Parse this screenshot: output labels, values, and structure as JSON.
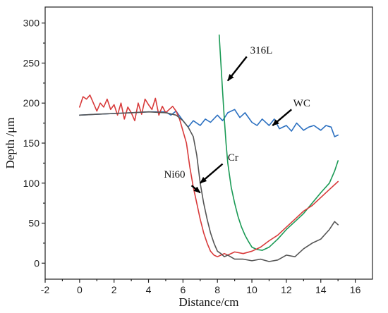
{
  "chart_data": {
    "type": "line",
    "xlabel": "Distance/cm",
    "ylabel": "Depth /μm",
    "xlim": [
      -2,
      17
    ],
    "ylim": [
      -20,
      320
    ],
    "xticks": [
      -2,
      0,
      2,
      4,
      6,
      8,
      10,
      12,
      14,
      16
    ],
    "yticks": [
      0,
      50,
      100,
      150,
      200,
      250,
      300
    ],
    "grid": false,
    "series": [
      {
        "name": "WC",
        "color": "#2a6fc0",
        "x": [
          0,
          1,
          2,
          3,
          4,
          5,
          5.3,
          5.6,
          6,
          6.3,
          6.6,
          7,
          7.3,
          7.6,
          8,
          8.3,
          8.6,
          9,
          9.3,
          9.6,
          10,
          10.3,
          10.6,
          11,
          11.3,
          11.6,
          12,
          12.3,
          12.6,
          13,
          13.3,
          13.6,
          14,
          14.3,
          14.6,
          14.8,
          15
        ],
        "y": [
          185,
          186,
          187,
          188,
          189,
          189,
          185,
          190,
          178,
          170,
          178,
          172,
          180,
          176,
          185,
          178,
          188,
          192,
          182,
          188,
          176,
          172,
          180,
          172,
          180,
          168,
          172,
          165,
          175,
          166,
          170,
          172,
          166,
          172,
          170,
          158,
          160
        ]
      },
      {
        "name": "316L",
        "color": "#1a9a55",
        "x": [
          8.1,
          8.2,
          8.3,
          8.4,
          8.5,
          8.6,
          8.8,
          9,
          9.2,
          9.4,
          9.6,
          9.8,
          10,
          10.3,
          10.6,
          11,
          11.5,
          12,
          12.5,
          13,
          13.5,
          14,
          14.5,
          14.8,
          15
        ],
        "y": [
          285,
          250,
          215,
          180,
          150,
          125,
          95,
          75,
          58,
          45,
          35,
          27,
          20,
          17,
          16,
          20,
          30,
          42,
          52,
          62,
          75,
          88,
          100,
          115,
          128
        ]
      },
      {
        "name": "Ni60",
        "color": "#d83a3a",
        "x": [
          0,
          0.2,
          0.4,
          0.6,
          0.8,
          1,
          1.2,
          1.4,
          1.6,
          1.8,
          2,
          2.2,
          2.4,
          2.6,
          2.8,
          3,
          3.2,
          3.4,
          3.6,
          3.8,
          4,
          4.2,
          4.4,
          4.6,
          4.8,
          5,
          5.2,
          5.4,
          5.6,
          5.8,
          6,
          6.2,
          6.4,
          6.6,
          6.8,
          7,
          7.2,
          7.4,
          7.6,
          7.8,
          8,
          8.2,
          8.4,
          8.6,
          9,
          9.5,
          10,
          10.5,
          11,
          11.5,
          12,
          12.5,
          13,
          13.5,
          14,
          14.5,
          15
        ],
        "y": [
          195,
          208,
          205,
          210,
          200,
          190,
          200,
          195,
          205,
          192,
          198,
          185,
          200,
          180,
          195,
          188,
          178,
          200,
          186,
          205,
          198,
          192,
          206,
          185,
          196,
          188,
          192,
          196,
          190,
          180,
          165,
          150,
          120,
          95,
          75,
          55,
          38,
          25,
          15,
          10,
          8,
          10,
          12,
          10,
          14,
          12,
          15,
          20,
          28,
          35,
          45,
          55,
          65,
          72,
          82,
          92,
          102
        ]
      },
      {
        "name": "Cr",
        "color": "#555555",
        "x": [
          0,
          1,
          2,
          3,
          4,
          5,
          5.6,
          6,
          6.3,
          6.6,
          6.8,
          7,
          7.2,
          7.4,
          7.6,
          7.8,
          8,
          8.2,
          8.4,
          8.6,
          9,
          9.5,
          10,
          10.5,
          11,
          11.5,
          12,
          12.5,
          13,
          13.5,
          14,
          14.5,
          14.8,
          15
        ],
        "y": [
          185,
          186,
          187,
          188,
          189,
          188,
          185,
          178,
          170,
          158,
          135,
          100,
          75,
          55,
          38,
          25,
          15,
          12,
          8,
          10,
          5,
          5,
          3,
          5,
          2,
          4,
          10,
          8,
          18,
          25,
          30,
          42,
          52,
          48
        ]
      }
    ],
    "annotations": [
      {
        "text": "316L",
        "series": "316L"
      },
      {
        "text": "WC",
        "series": "WC"
      },
      {
        "text": "Cr",
        "series": "Cr"
      },
      {
        "text": "Ni60",
        "series": "Ni60"
      }
    ]
  }
}
